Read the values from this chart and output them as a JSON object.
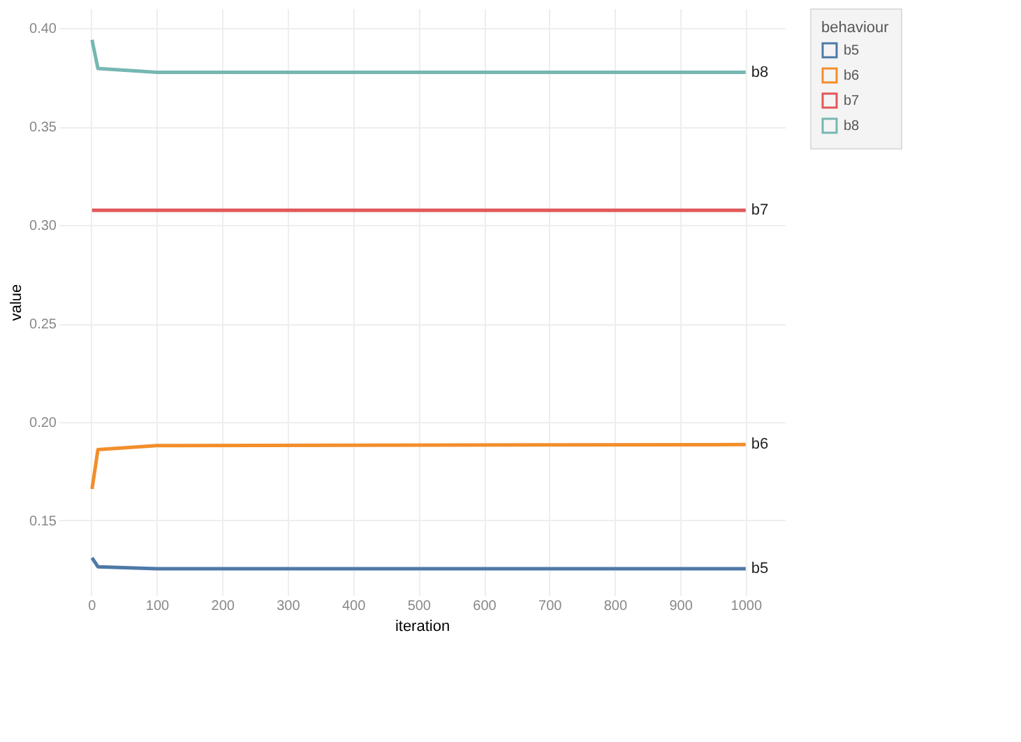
{
  "chart_data": {
    "type": "line",
    "xlabel": "iteration",
    "ylabel": "value",
    "legend_title": "behaviour",
    "x": [
      1,
      10,
      100,
      1000
    ],
    "series": [
      {
        "name": "b5",
        "color": "#4e79a7",
        "values": [
          0.131,
          0.1265,
          0.1255,
          0.1255
        ]
      },
      {
        "name": "b6",
        "color": "#f28e2b",
        "values": [
          0.166,
          0.186,
          0.188,
          0.1885
        ]
      },
      {
        "name": "b7",
        "color": "#e15759",
        "values": [
          0.3075,
          0.3075,
          0.3075,
          0.3075
        ]
      },
      {
        "name": "b8",
        "color": "#76b7b2",
        "values": [
          0.394,
          0.3795,
          0.3775,
          0.3775
        ]
      }
    ],
    "xlim": [
      -50,
      1060
    ],
    "xticks": [
      0,
      100,
      200,
      300,
      400,
      500,
      600,
      700,
      800,
      900,
      1000
    ],
    "ylim": [
      0.112,
      0.41
    ],
    "yticks": [
      0.15,
      {
        "value": 0.2,
        "label": "0.20"
      },
      0.25,
      {
        "value": 0.3,
        "label": "0.30"
      },
      0.35,
      {
        "value": 0.4,
        "label": "0.40"
      }
    ],
    "grid": true,
    "legend": "top right",
    "marker": "none",
    "line_style": "solid"
  }
}
